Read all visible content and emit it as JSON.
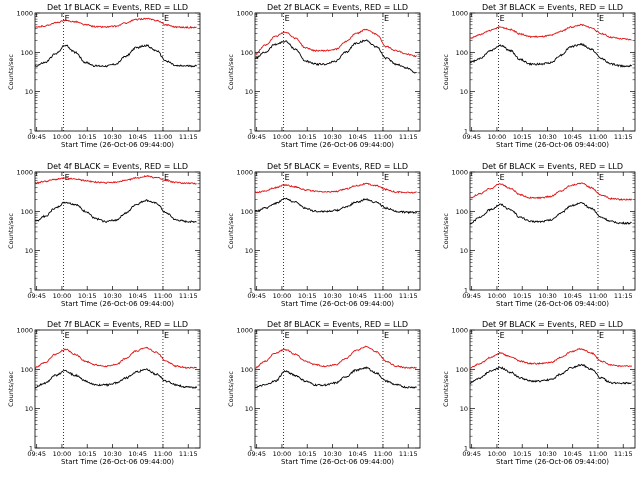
{
  "figure": {
    "background": "#ffffff"
  },
  "colors": {
    "events": "#000000",
    "lld": "#e01010",
    "axes": "#000000"
  },
  "chart_data": [
    {
      "type": "line",
      "title": "Det 1f BLACK = Events, RED = LLD",
      "xlabel": "Start Time (26-Oct-06 09:44:00)",
      "ylabel": "Counts/sec",
      "yscale": "log",
      "ylim": [
        1,
        1000
      ],
      "ytick_labels": [
        "1",
        "10",
        "100",
        "1000"
      ],
      "xtick_labels": [
        "09:45",
        "10:00",
        "10:15",
        "10:30",
        "10:45",
        "11:00",
        "11:15"
      ],
      "vlines": [
        "10:01",
        "11:00"
      ],
      "markers": [
        "E",
        "E"
      ],
      "series": [
        {
          "name": "Events",
          "color": "#000000",
          "x": [
            "09:44",
            "09:50",
            "09:56",
            "10:02",
            "10:08",
            "10:14",
            "10:20",
            "10:26",
            "10:32",
            "10:38",
            "10:44",
            "10:50",
            "10:56",
            "11:02",
            "11:08",
            "11:14",
            "11:20"
          ],
          "values": [
            45,
            55,
            90,
            150,
            100,
            55,
            45,
            45,
            50,
            80,
            130,
            150,
            110,
            60,
            45,
            45,
            45
          ]
        },
        {
          "name": "LLD",
          "color": "#e01010",
          "x": [
            "09:44",
            "09:50",
            "09:56",
            "10:02",
            "10:08",
            "10:14",
            "10:20",
            "10:26",
            "10:32",
            "10:38",
            "10:44",
            "10:50",
            "10:56",
            "11:02",
            "11:08",
            "11:14",
            "11:20"
          ],
          "values": [
            430,
            470,
            560,
            640,
            600,
            500,
            450,
            440,
            460,
            560,
            680,
            720,
            650,
            500,
            440,
            430,
            430
          ]
        }
      ]
    },
    {
      "type": "line",
      "title": "Det 2f BLACK = Events, RED = LLD",
      "xlabel": "Start Time (26-Oct-06 09:44:00)",
      "ylabel": "Counts/sec",
      "yscale": "log",
      "ylim": [
        1,
        1000
      ],
      "ytick_labels": [
        "1",
        "10",
        "100",
        "1000"
      ],
      "xtick_labels": [
        "09:45",
        "10:00",
        "10:15",
        "10:30",
        "10:45",
        "11:00",
        "11:15"
      ],
      "vlines": [
        "10:01",
        "11:00"
      ],
      "markers": [
        "E",
        "E"
      ],
      "series": [
        {
          "name": "Events",
          "color": "#000000",
          "x": [
            "09:44",
            "09:50",
            "09:56",
            "10:02",
            "10:08",
            "10:14",
            "10:20",
            "10:26",
            "10:32",
            "10:38",
            "10:44",
            "10:50",
            "10:56",
            "11:02",
            "11:08",
            "11:14",
            "11:20"
          ],
          "values": [
            70,
            100,
            160,
            190,
            120,
            60,
            50,
            50,
            60,
            100,
            170,
            200,
            140,
            70,
            50,
            40,
            30
          ]
        },
        {
          "name": "LLD",
          "color": "#e01010",
          "x": [
            "09:44",
            "09:50",
            "09:56",
            "10:02",
            "10:08",
            "10:14",
            "10:20",
            "10:26",
            "10:32",
            "10:38",
            "10:44",
            "10:50",
            "10:56",
            "11:02",
            "11:08",
            "11:14",
            "11:20"
          ],
          "values": [
            90,
            150,
            250,
            330,
            230,
            130,
            110,
            110,
            120,
            190,
            300,
            380,
            290,
            140,
            110,
            90,
            80
          ]
        }
      ]
    },
    {
      "type": "line",
      "title": "Det 3f BLACK = Events, RED = LLD",
      "xlabel": "Start Time (26-Oct-06 09:44:00)",
      "ylabel": "Counts/sec",
      "yscale": "log",
      "ylim": [
        1,
        1000
      ],
      "ytick_labels": [
        "1",
        "10",
        "100",
        "1000"
      ],
      "xtick_labels": [
        "09:45",
        "10:00",
        "10:15",
        "10:30",
        "10:45",
        "11:00",
        "11:15"
      ],
      "vlines": [
        "10:01",
        "11:00"
      ],
      "markers": [
        "E",
        "E"
      ],
      "series": [
        {
          "name": "Events",
          "color": "#000000",
          "x": [
            "09:44",
            "09:50",
            "09:56",
            "10:02",
            "10:08",
            "10:14",
            "10:20",
            "10:26",
            "10:32",
            "10:38",
            "10:44",
            "10:50",
            "10:56",
            "11:02",
            "11:08",
            "11:14",
            "11:20"
          ],
          "values": [
            55,
            70,
            110,
            150,
            110,
            65,
            50,
            50,
            55,
            85,
            140,
            160,
            120,
            70,
            50,
            45,
            45
          ]
        },
        {
          "name": "LLD",
          "color": "#e01010",
          "x": [
            "09:44",
            "09:50",
            "09:56",
            "10:02",
            "10:08",
            "10:14",
            "10:20",
            "10:26",
            "10:32",
            "10:38",
            "10:44",
            "10:50",
            "10:56",
            "11:02",
            "11:08",
            "11:14",
            "11:20"
          ],
          "values": [
            230,
            280,
            360,
            440,
            380,
            290,
            250,
            250,
            270,
            340,
            440,
            500,
            420,
            300,
            240,
            220,
            210
          ]
        }
      ]
    },
    {
      "type": "line",
      "title": "Det 4f BLACK = Events, RED = LLD",
      "xlabel": "Start Time (26-Oct-06 09:44:00)",
      "ylabel": "Counts/sec",
      "yscale": "log",
      "ylim": [
        1,
        1000
      ],
      "ytick_labels": [
        "1",
        "10",
        "100",
        "1000"
      ],
      "xtick_labels": [
        "09:45",
        "10:00",
        "10:15",
        "10:30",
        "10:45",
        "11:00",
        "11:15"
      ],
      "vlines": [
        "10:01",
        "11:00"
      ],
      "markers": [
        "E",
        "E"
      ],
      "series": [
        {
          "name": "Events",
          "color": "#000000",
          "x": [
            "09:44",
            "09:50",
            "09:56",
            "10:02",
            "10:08",
            "10:14",
            "10:20",
            "10:26",
            "10:32",
            "10:38",
            "10:44",
            "10:50",
            "10:56",
            "11:02",
            "11:08",
            "11:14",
            "11:20"
          ],
          "values": [
            55,
            75,
            120,
            170,
            150,
            100,
            65,
            55,
            60,
            90,
            150,
            190,
            160,
            90,
            60,
            55,
            55
          ]
        },
        {
          "name": "LLD",
          "color": "#e01010",
          "x": [
            "09:44",
            "09:50",
            "09:56",
            "10:02",
            "10:08",
            "10:14",
            "10:20",
            "10:26",
            "10:32",
            "10:38",
            "10:44",
            "10:50",
            "10:56",
            "11:02",
            "11:08",
            "11:14",
            "11:20"
          ],
          "values": [
            520,
            580,
            650,
            700,
            660,
            600,
            550,
            530,
            550,
            610,
            700,
            780,
            720,
            600,
            540,
            520,
            510
          ]
        }
      ]
    },
    {
      "type": "line",
      "title": "Det 5f BLACK = Events, RED = LLD",
      "xlabel": "Start Time (26-Oct-06 09:44:00)",
      "ylabel": "Counts/sec",
      "yscale": "log",
      "ylim": [
        1,
        1000
      ],
      "ytick_labels": [
        "1",
        "10",
        "100",
        "1000"
      ],
      "xtick_labels": [
        "09:45",
        "10:00",
        "10:15",
        "10:30",
        "10:45",
        "11:00",
        "11:15"
      ],
      "vlines": [
        "10:01",
        "11:00"
      ],
      "markers": [
        "E",
        "E"
      ],
      "series": [
        {
          "name": "Events",
          "color": "#000000",
          "x": [
            "09:44",
            "09:50",
            "09:56",
            "10:02",
            "10:08",
            "10:14",
            "10:20",
            "10:26",
            "10:32",
            "10:38",
            "10:44",
            "10:50",
            "10:56",
            "11:02",
            "11:08",
            "11:14",
            "11:20"
          ],
          "values": [
            100,
            120,
            160,
            210,
            170,
            120,
            100,
            100,
            105,
            130,
            170,
            200,
            170,
            120,
            100,
            95,
            95
          ]
        },
        {
          "name": "LLD",
          "color": "#e01010",
          "x": [
            "09:44",
            "09:50",
            "09:56",
            "10:02",
            "10:08",
            "10:14",
            "10:20",
            "10:26",
            "10:32",
            "10:38",
            "10:44",
            "10:50",
            "10:56",
            "11:02",
            "11:08",
            "11:14",
            "11:20"
          ],
          "values": [
            300,
            330,
            400,
            470,
            420,
            350,
            320,
            310,
            320,
            370,
            450,
            500,
            450,
            360,
            310,
            300,
            300
          ]
        }
      ]
    },
    {
      "type": "line",
      "title": "Det 6f BLACK = Events, RED = LLD",
      "xlabel": "Start Time (26-Oct-06 09:44:00)",
      "ylabel": "Counts/sec",
      "yscale": "log",
      "ylim": [
        1,
        1000
      ],
      "ytick_labels": [
        "1",
        "10",
        "100",
        "1000"
      ],
      "xtick_labels": [
        "09:45",
        "10:00",
        "10:15",
        "10:30",
        "10:45",
        "11:00",
        "11:15"
      ],
      "vlines": [
        "10:01",
        "11:00"
      ],
      "markers": [
        "E",
        "E"
      ],
      "series": [
        {
          "name": "Events",
          "color": "#000000",
          "x": [
            "09:44",
            "09:50",
            "09:56",
            "10:02",
            "10:08",
            "10:14",
            "10:20",
            "10:26",
            "10:32",
            "10:38",
            "10:44",
            "10:50",
            "10:56",
            "11:02",
            "11:08",
            "11:14",
            "11:20"
          ],
          "values": [
            50,
            70,
            110,
            150,
            110,
            70,
            55,
            55,
            60,
            90,
            140,
            160,
            120,
            70,
            55,
            50,
            50
          ]
        },
        {
          "name": "LLD",
          "color": "#e01010",
          "x": [
            "09:44",
            "09:50",
            "09:56",
            "10:02",
            "10:08",
            "10:14",
            "10:20",
            "10:26",
            "10:32",
            "10:38",
            "10:44",
            "10:50",
            "10:56",
            "11:02",
            "11:08",
            "11:14",
            "11:20"
          ],
          "values": [
            220,
            280,
            380,
            500,
            380,
            260,
            220,
            220,
            240,
            330,
            460,
            520,
            400,
            260,
            210,
            200,
            200
          ]
        }
      ]
    },
    {
      "type": "line",
      "title": "Det 7f BLACK = Events, RED = LLD",
      "xlabel": "Start Time (26-Oct-06 09:44:00)",
      "ylabel": "Counts/sec",
      "yscale": "log",
      "ylim": [
        1,
        1000
      ],
      "ytick_labels": [
        "1",
        "10",
        "100",
        "1000"
      ],
      "xtick_labels": [
        "09:45",
        "10:00",
        "10:15",
        "10:30",
        "10:45",
        "11:00",
        "11:15"
      ],
      "vlines": [
        "10:01",
        "11:00"
      ],
      "markers": [
        "E",
        "E"
      ],
      "series": [
        {
          "name": "Events",
          "color": "#000000",
          "x": [
            "09:44",
            "09:50",
            "09:56",
            "10:02",
            "10:08",
            "10:14",
            "10:20",
            "10:26",
            "10:32",
            "10:38",
            "10:44",
            "10:50",
            "10:56",
            "11:02",
            "11:08",
            "11:14",
            "11:20"
          ],
          "values": [
            35,
            45,
            70,
            90,
            70,
            50,
            40,
            40,
            45,
            60,
            85,
            100,
            75,
            50,
            40,
            35,
            35
          ]
        },
        {
          "name": "LLD",
          "color": "#e01010",
          "x": [
            "09:44",
            "09:50",
            "09:56",
            "10:02",
            "10:08",
            "10:14",
            "10:20",
            "10:26",
            "10:32",
            "10:38",
            "10:44",
            "10:50",
            "10:56",
            "11:02",
            "11:08",
            "11:14",
            "11:20"
          ],
          "values": [
            110,
            150,
            240,
            320,
            240,
            160,
            130,
            120,
            130,
            190,
            290,
            360,
            270,
            160,
            120,
            110,
            110
          ]
        }
      ]
    },
    {
      "type": "line",
      "title": "Det 8f BLACK = Events, RED = LLD",
      "xlabel": "Start Time (26-Oct-06 09:44:00)",
      "ylabel": "Counts/sec",
      "yscale": "log",
      "ylim": [
        1,
        1000
      ],
      "ytick_labels": [
        "1",
        "10",
        "100",
        "1000"
      ],
      "xtick_labels": [
        "09:45",
        "10:00",
        "10:15",
        "10:30",
        "10:45",
        "11:00",
        "11:15"
      ],
      "vlines": [
        "10:01",
        "11:00"
      ],
      "markers": [
        "E",
        "E"
      ],
      "series": [
        {
          "name": "Events",
          "color": "#000000",
          "x": [
            "09:44",
            "09:50",
            "09:56",
            "10:02",
            "10:08",
            "10:14",
            "10:20",
            "10:26",
            "10:32",
            "10:38",
            "10:44",
            "10:50",
            "10:56",
            "11:02",
            "11:08",
            "11:14",
            "11:20"
          ],
          "values": [
            35,
            40,
            50,
            90,
            70,
            50,
            40,
            40,
            45,
            65,
            95,
            110,
            80,
            50,
            40,
            35,
            35
          ]
        },
        {
          "name": "LLD",
          "color": "#e01010",
          "x": [
            "09:44",
            "09:50",
            "09:56",
            "10:02",
            "10:08",
            "10:14",
            "10:20",
            "10:26",
            "10:32",
            "10:38",
            "10:44",
            "10:50",
            "10:56",
            "11:02",
            "11:08",
            "11:14",
            "11:20"
          ],
          "values": [
            110,
            160,
            260,
            320,
            240,
            160,
            130,
            120,
            130,
            190,
            300,
            380,
            280,
            160,
            120,
            110,
            110
          ]
        }
      ]
    },
    {
      "type": "line",
      "title": "Det 9f BLACK = Events, RED = LLD",
      "xlabel": "Start Time (26-Oct-06 09:44:00)",
      "ylabel": "Counts/sec",
      "yscale": "log",
      "ylim": [
        1,
        1000
      ],
      "ytick_labels": [
        "1",
        "10",
        "100",
        "1000"
      ],
      "xtick_labels": [
        "09:45",
        "10:00",
        "10:15",
        "10:30",
        "10:45",
        "11:00",
        "11:15"
      ],
      "vlines": [
        "10:01",
        "11:00"
      ],
      "markers": [
        "E",
        "E"
      ],
      "series": [
        {
          "name": "Events",
          "color": "#000000",
          "x": [
            "09:44",
            "09:50",
            "09:56",
            "10:02",
            "10:08",
            "10:14",
            "10:20",
            "10:26",
            "10:32",
            "10:38",
            "10:44",
            "10:50",
            "10:56",
            "11:02",
            "11:08",
            "11:14",
            "11:20"
          ],
          "values": [
            45,
            60,
            90,
            110,
            85,
            60,
            50,
            50,
            55,
            75,
            110,
            130,
            100,
            60,
            45,
            45,
            45
          ]
        },
        {
          "name": "LLD",
          "color": "#e01010",
          "x": [
            "09:44",
            "09:50",
            "09:56",
            "10:02",
            "10:08",
            "10:14",
            "10:20",
            "10:26",
            "10:32",
            "10:38",
            "10:44",
            "10:50",
            "10:56",
            "11:02",
            "11:08",
            "11:14",
            "11:20"
          ],
          "values": [
            110,
            140,
            200,
            260,
            210,
            160,
            140,
            140,
            150,
            200,
            280,
            330,
            260,
            160,
            130,
            120,
            120
          ]
        }
      ]
    }
  ]
}
